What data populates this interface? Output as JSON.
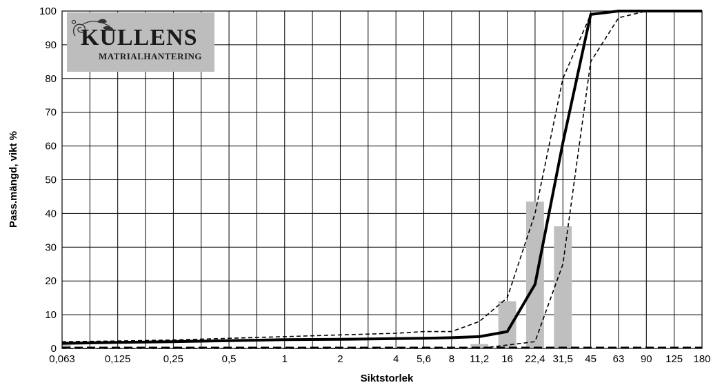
{
  "logo": {
    "main": "KULLENS",
    "sub": "MATRIALHANTERING"
  },
  "chart_data": {
    "type": "line",
    "xlabel": "Siktstorlek",
    "ylabel": "Pass.mängd, vikt %",
    "ylim": [
      0,
      100
    ],
    "yticks": [
      "0",
      "10",
      "20",
      "30",
      "40",
      "50",
      "60",
      "70",
      "80",
      "90",
      "100"
    ],
    "categories": [
      "0,063",
      "0,125",
      "0,25",
      "0,5",
      "1",
      "2",
      "4",
      "5,6",
      "8",
      "11,2",
      "16",
      "22,4",
      "31,5",
      "45",
      "63",
      "90",
      "125",
      "180"
    ],
    "x_category_positions": [
      0,
      1,
      2,
      3,
      4,
      5,
      6,
      6.5,
      7,
      7.5,
      8,
      8.5,
      9,
      9.5,
      10,
      10.5,
      11,
      11.5
    ],
    "grid": true,
    "series": [
      {
        "name": "",
        "style": "thick-solid",
        "color": "#000000",
        "points": [
          [
            0,
            1.5
          ],
          [
            1,
            1.8
          ],
          [
            2,
            2.0
          ],
          [
            3,
            2.3
          ],
          [
            4,
            2.6
          ],
          [
            5,
            2.7
          ],
          [
            6,
            2.9
          ],
          [
            6.5,
            3.0
          ],
          [
            7,
            3.2
          ],
          [
            7.5,
            3.5
          ],
          [
            8,
            5.0
          ],
          [
            8.5,
            19.0
          ],
          [
            9,
            61.0
          ],
          [
            9.5,
            99.0
          ],
          [
            10,
            100
          ],
          [
            10.5,
            100
          ],
          [
            11,
            100
          ],
          [
            11.5,
            100
          ]
        ]
      },
      {
        "name": "",
        "style": "dashed-upper",
        "color": "#000000",
        "points": [
          [
            0,
            2.0
          ],
          [
            1,
            2.2
          ],
          [
            2,
            2.5
          ],
          [
            3,
            3.0
          ],
          [
            4,
            3.5
          ],
          [
            5,
            4.0
          ],
          [
            6,
            4.5
          ],
          [
            6.5,
            5.0
          ],
          [
            7,
            5.0
          ],
          [
            7.5,
            8.0
          ],
          [
            8,
            15.0
          ],
          [
            8.5,
            40.0
          ],
          [
            9,
            80.0
          ],
          [
            9.5,
            99.0
          ],
          [
            10,
            100
          ],
          [
            10.5,
            100
          ],
          [
            11,
            100
          ],
          [
            11.5,
            100
          ]
        ]
      },
      {
        "name": "",
        "style": "dashed-lower",
        "color": "#000000",
        "points": [
          [
            0,
            0
          ],
          [
            1,
            0
          ],
          [
            2,
            0
          ],
          [
            3,
            0
          ],
          [
            4,
            0
          ],
          [
            5,
            0
          ],
          [
            6,
            0
          ],
          [
            6.5,
            0
          ],
          [
            7,
            0
          ],
          [
            7.5,
            0
          ],
          [
            8,
            1.0
          ],
          [
            8.5,
            2.0
          ],
          [
            9,
            25.0
          ],
          [
            9.5,
            85.0
          ],
          [
            10,
            98.0
          ],
          [
            10.5,
            100
          ],
          [
            11,
            100
          ],
          [
            11.5,
            100
          ]
        ]
      },
      {
        "name": "",
        "style": "bar",
        "color": "#bfbfbf",
        "bars": [
          [
            0,
            1.0
          ],
          [
            7.5,
            1.3
          ],
          [
            8,
            14.0
          ],
          [
            8.5,
            43.5
          ],
          [
            9,
            36.2
          ]
        ]
      }
    ]
  }
}
